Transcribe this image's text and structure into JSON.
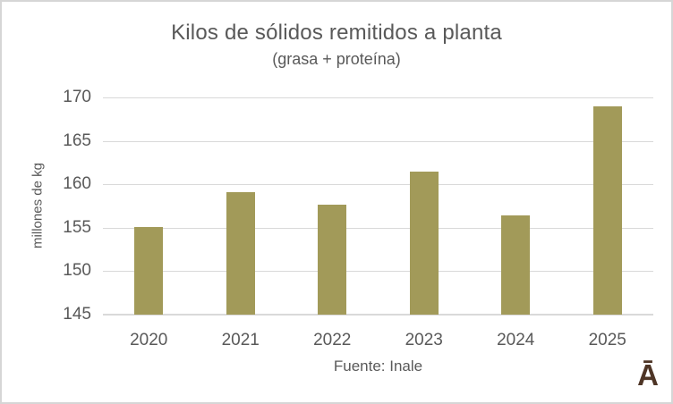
{
  "chart": {
    "title": "Kilos de sólidos remitidos a planta",
    "subtitle": "(grasa + proteína)",
    "ylabel": "millones de kg",
    "source": "Fuente: Inale",
    "logo": "Ā"
  },
  "colors": {
    "bar": "#a29a59",
    "grid": "#d9d9d9",
    "text": "#595959",
    "logo": "#4e3526",
    "border": "#d6d6d6",
    "background": "#ffffff"
  },
  "chart_data": {
    "type": "bar",
    "categories": [
      "2020",
      "2021",
      "2022",
      "2023",
      "2024",
      "2025"
    ],
    "values": [
      155.1,
      159.1,
      157.7,
      161.5,
      156.4,
      169.0
    ],
    "title": "Kilos de sólidos remitidos a planta",
    "subtitle": "(grasa + proteína)",
    "xlabel": "",
    "ylabel": "millones de kg",
    "ylim": [
      145,
      170
    ],
    "yticks": [
      145,
      150,
      155,
      160,
      165,
      170
    ],
    "grid": true,
    "legend": false,
    "bar_color": "#a29a59",
    "source": "Fuente: Inale"
  }
}
